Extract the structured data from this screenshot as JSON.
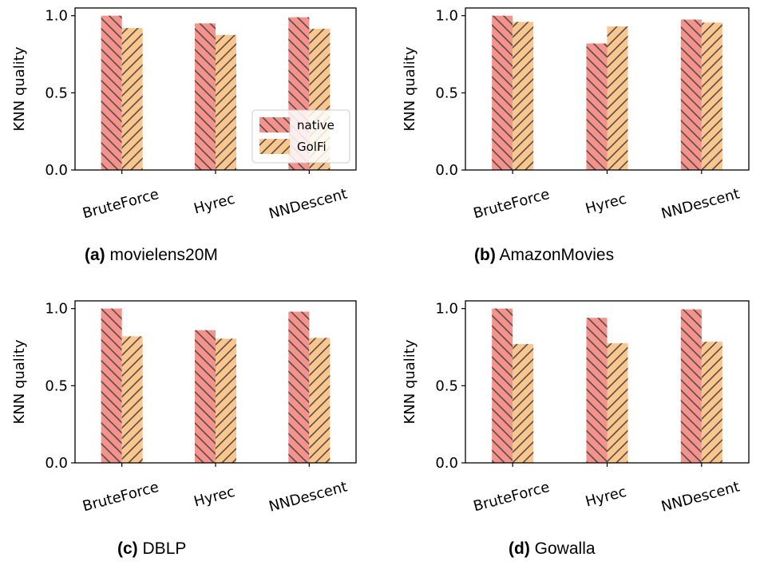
{
  "figure": {
    "colors": {
      "native": "#f4938c",
      "golfi": "#f9c68d",
      "hatch": "#5a4a48"
    }
  },
  "chart_data": [
    {
      "type": "bar",
      "caption_label": "(a)",
      "caption_text": "movielens20M",
      "categories": [
        "BruteForce",
        "Hyrec",
        "NNDescent"
      ],
      "series": [
        {
          "name": "native",
          "values": [
            1.0,
            0.95,
            0.99
          ]
        },
        {
          "name": "GolFi",
          "values": [
            0.92,
            0.875,
            0.915
          ]
        }
      ],
      "ylabel": "KNN quality",
      "ylim": [
        0,
        1.05
      ],
      "yticks": [
        0.0,
        0.5,
        1.0
      ],
      "ytick_labels": [
        "0.0",
        "0.5",
        "1.0"
      ],
      "legend": "lower-right",
      "grid": false
    },
    {
      "type": "bar",
      "caption_label": "(b)",
      "caption_text": "AmazonMovies",
      "categories": [
        "BruteForce",
        "Hyrec",
        "NNDescent"
      ],
      "series": [
        {
          "name": "native",
          "values": [
            1.0,
            0.82,
            0.975
          ]
        },
        {
          "name": "GolFi",
          "values": [
            0.96,
            0.93,
            0.955
          ]
        }
      ],
      "ylabel": "KNN quality",
      "ylim": [
        0,
        1.05
      ],
      "yticks": [
        0.0,
        0.5,
        1.0
      ],
      "ytick_labels": [
        "0.0",
        "0.5",
        "1.0"
      ],
      "grid": false
    },
    {
      "type": "bar",
      "caption_label": "(c)",
      "caption_text": "DBLP",
      "categories": [
        "BruteForce",
        "Hyrec",
        "NNDescent"
      ],
      "series": [
        {
          "name": "native",
          "values": [
            1.0,
            0.86,
            0.98
          ]
        },
        {
          "name": "GolFi",
          "values": [
            0.82,
            0.805,
            0.81
          ]
        }
      ],
      "ylabel": "KNN quality",
      "ylim": [
        0,
        1.05
      ],
      "yticks": [
        0.0,
        0.5,
        1.0
      ],
      "ytick_labels": [
        "0.0",
        "0.5",
        "1.0"
      ],
      "grid": false
    },
    {
      "type": "bar",
      "caption_label": "(d)",
      "caption_text": "Gowalla",
      "categories": [
        "BruteForce",
        "Hyrec",
        "NNDescent"
      ],
      "series": [
        {
          "name": "native",
          "values": [
            1.0,
            0.94,
            0.995
          ]
        },
        {
          "name": "GolFi",
          "values": [
            0.77,
            0.775,
            0.785
          ]
        }
      ],
      "ylabel": "KNN quality",
      "ylim": [
        0,
        1.05
      ],
      "yticks": [
        0.0,
        0.5,
        1.0
      ],
      "ytick_labels": [
        "0.0",
        "0.5",
        "1.0"
      ],
      "grid": false
    }
  ]
}
